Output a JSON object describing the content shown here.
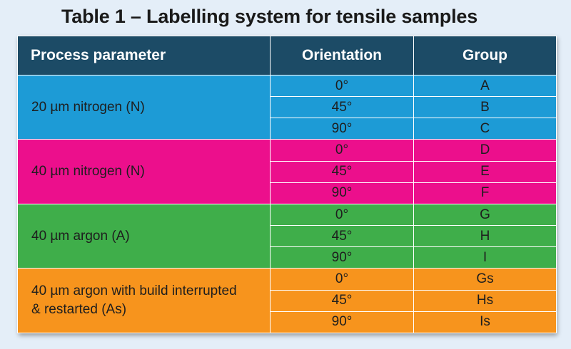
{
  "title": "Table 1 – Labelling system for tensile samples",
  "headers": {
    "parameter": "Process parameter",
    "orientation": "Orientation",
    "group": "Group"
  },
  "colors": {
    "header": "#1c4b66",
    "nitrogen_20": "#1d9bd6",
    "nitrogen_40": "#ec0f8c",
    "argon_40": "#3fae4a",
    "argon_40_interrupted": "#f7941d"
  },
  "groups": [
    {
      "parameter": "20 µm nitrogen (N)",
      "rows": [
        {
          "orientation": "0°",
          "group": "A"
        },
        {
          "orientation": "45°",
          "group": "B"
        },
        {
          "orientation": "90°",
          "group": "C"
        }
      ]
    },
    {
      "parameter": "40 µm nitrogen (N)",
      "rows": [
        {
          "orientation": "0°",
          "group": "D"
        },
        {
          "orientation": "45°",
          "group": "E"
        },
        {
          "orientation": "90°",
          "group": "F"
        }
      ]
    },
    {
      "parameter": "40 µm argon (A)",
      "rows": [
        {
          "orientation": "0°",
          "group": "G"
        },
        {
          "orientation": "45°",
          "group": "H"
        },
        {
          "orientation": "90°",
          "group": "I"
        }
      ]
    },
    {
      "parameter_line1": "40 µm argon with build interrupted",
      "parameter_line2": "& restarted (As)",
      "rows": [
        {
          "orientation": "0°",
          "group": "Gs"
        },
        {
          "orientation": "45°",
          "group": "Hs"
        },
        {
          "orientation": "90°",
          "group": "Is"
        }
      ]
    }
  ]
}
